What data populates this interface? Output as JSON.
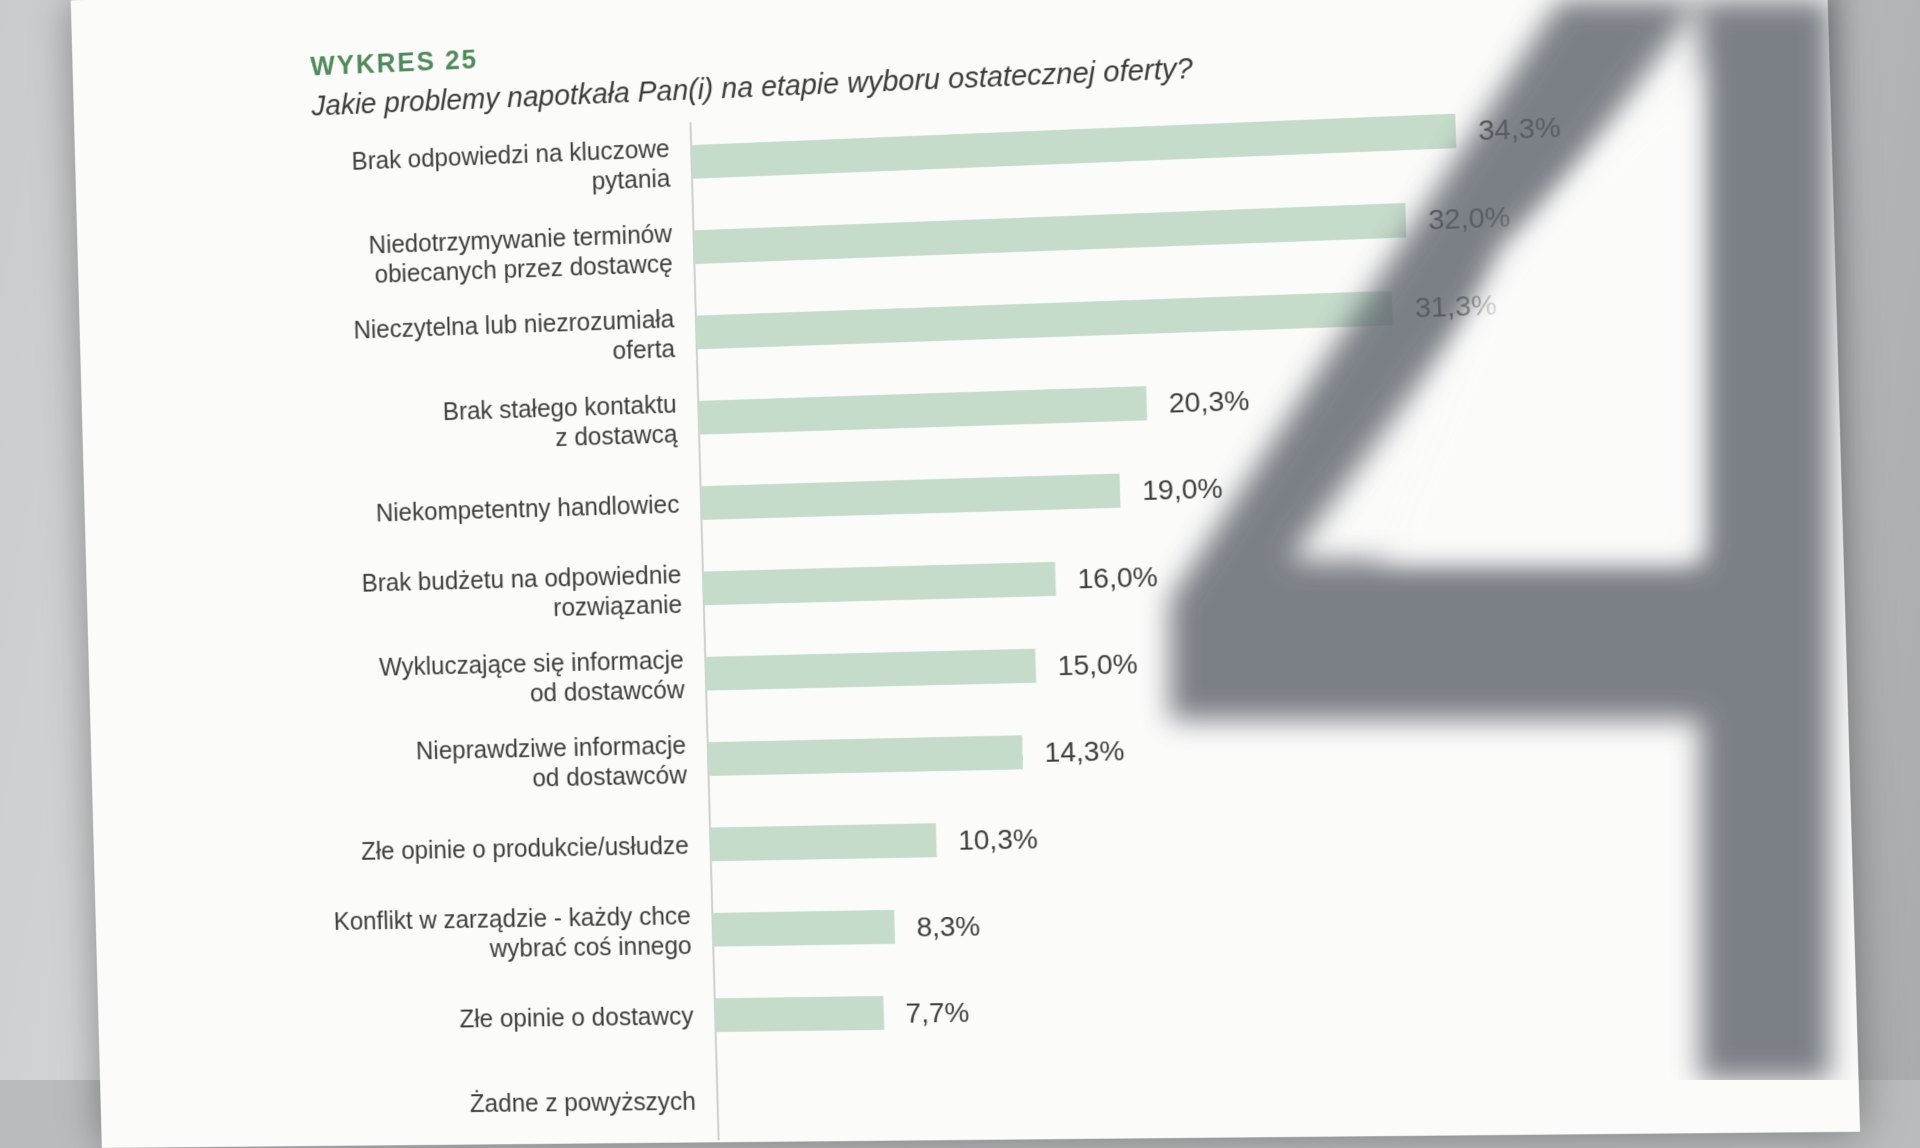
{
  "chart_label": "WYKRES 25",
  "chart_data": {
    "type": "bar",
    "orientation": "horizontal",
    "title": "Jakie problemy napotkała Pan(i) na etapie wyboru ostatecznej oferty?",
    "categories": [
      [
        "Brak odpowiedzi na kluczowe",
        "pytania"
      ],
      [
        "Niedotrzymywanie terminów",
        "obiecanych przez dostawcę"
      ],
      [
        "Nieczytelna lub niezrozumiała",
        "oferta"
      ],
      [
        "Brak stałego kontaktu",
        "z dostawcą"
      ],
      [
        "Niekompetentny handlowiec"
      ],
      [
        "Brak budżetu na odpowiednie",
        "rozwiązanie"
      ],
      [
        "Wykluczające się informacje",
        "od dostawców"
      ],
      [
        "Nieprawdziwe informacje",
        "od dostawców"
      ],
      [
        "Złe opinie o produkcie/usłudze"
      ],
      [
        "Konflikt w zarządzie - każdy chce",
        "wybrać coś innego"
      ],
      [
        "Złe opinie o dostawcy"
      ],
      [
        "Żadne z powyższych"
      ]
    ],
    "values": [
      34.3,
      32.0,
      31.3,
      20.3,
      19.0,
      16.0,
      15.0,
      14.3,
      10.3,
      8.3,
      7.7,
      null
    ],
    "value_labels": [
      "34,3%",
      "32,0%",
      "31,3%",
      "20,3%",
      "19,0%",
      "16,0%",
      "15,0%",
      "14,3%",
      "10,3%",
      "8,3%",
      "7,7%",
      ""
    ],
    "xlim": [
      0,
      34.3
    ],
    "bar_color": "#c5dccb",
    "axis_color": "#cfcfcf",
    "grid": false,
    "legend": "none"
  }
}
